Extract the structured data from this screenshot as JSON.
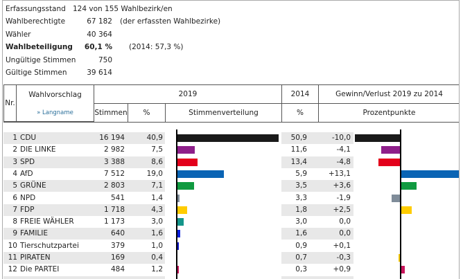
{
  "summary": [
    {
      "label": "Erfassungsstand",
      "value": "124 von 155 Wahlbezirk/en",
      "extra": ""
    },
    {
      "label": "Wahlberechtigte",
      "value": "67 182",
      "extra": "(der erfassten Wahlbezirke)"
    },
    {
      "label": "Wähler",
      "value": "40 364",
      "extra": ""
    },
    {
      "label": "Wahlbeteiligung",
      "value": "60,1  %",
      "extra": "(2014: 57,3  %)"
    },
    {
      "label": "Ungültige Stimmen",
      "value": "750",
      "extra": ""
    },
    {
      "label": "Gültige Stimmen",
      "value": "39 614",
      "extra": ""
    }
  ],
  "header": {
    "nr": "Nr.",
    "wahlvorschlag": "Wahlvorschlag",
    "langname": "» Langname",
    "y2019": "2019",
    "y2014": "2014",
    "gewinn": "Gewinn/Verlust 2019 zu 2014",
    "stimmen": "Stimmen",
    "pct": "%",
    "verteilung": "Stimmenverteilung",
    "pct2014": "%",
    "punkte": "Prozentpunkte"
  },
  "rows": [
    {
      "nr": "1",
      "name": "CDU",
      "stimmen": "16 194",
      "pct": "40,9",
      "pct2014": "50,9",
      "diff": "-10,0",
      "v": 40.9,
      "d": -10.0,
      "color": "#1a1a1a"
    },
    {
      "nr": "2",
      "name": "DIE LINKE",
      "stimmen": "2 982",
      "pct": "7,5",
      "pct2014": "11,6",
      "diff": "-4,1",
      "v": 7.5,
      "d": -4.1,
      "color": "#8e1f8a"
    },
    {
      "nr": "3",
      "name": "SPD",
      "stimmen": "3 388",
      "pct": "8,6",
      "pct2014": "13,4",
      "diff": "-4,8",
      "v": 8.6,
      "d": -4.8,
      "color": "#e3001b"
    },
    {
      "nr": "4",
      "name": "AfD",
      "stimmen": "7 512",
      "pct": "19,0",
      "pct2014": "5,9",
      "diff": "+13,1",
      "v": 19.0,
      "d": 13.1,
      "color": "#0a64b4"
    },
    {
      "nr": "5",
      "name": "GRÜNE",
      "stimmen": "2 803",
      "pct": "7,1",
      "pct2014": "3,5",
      "diff": "+3,6",
      "v": 7.1,
      "d": 3.6,
      "color": "#109a40"
    },
    {
      "nr": "6",
      "name": "NPD",
      "stimmen": "541",
      "pct": "1,4",
      "pct2014": "3,3",
      "diff": "-1,9",
      "v": 1.4,
      "d": -1.9,
      "color": "#7f8c99"
    },
    {
      "nr": "7",
      "name": "FDP",
      "stimmen": "1 718",
      "pct": "4,3",
      "pct2014": "1,8",
      "diff": "+2,5",
      "v": 4.3,
      "d": 2.5,
      "color": "#ffcc00"
    },
    {
      "nr": "8",
      "name": "FREIE WÄHLER",
      "stimmen": "1 173",
      "pct": "3,0",
      "pct2014": "3,0",
      "diff": "0,0",
      "v": 3.0,
      "d": 0.0,
      "color": "#14958a"
    },
    {
      "nr": "9",
      "name": "FAMILIE",
      "stimmen": "640",
      "pct": "1,6",
      "pct2014": "1,6",
      "diff": "0,0",
      "v": 1.6,
      "d": 0.0,
      "color": "#0a1edc"
    },
    {
      "nr": "10",
      "name": "Tierschutzpartei",
      "stimmen": "379",
      "pct": "1,0",
      "pct2014": "0,9",
      "diff": "+0,1",
      "v": 1.0,
      "d": 0.1,
      "color": "#0a14c8"
    },
    {
      "nr": "11",
      "name": "PIRATEN",
      "stimmen": "169",
      "pct": "0,4",
      "pct2014": "0,7",
      "diff": "-0,3",
      "v": 0.4,
      "d": -0.3,
      "color": "#f5c800"
    },
    {
      "nr": "12",
      "name": "Die PARTEI",
      "stimmen": "484",
      "pct": "1,2",
      "pct2014": "0,3",
      "diff": "+0,9",
      "v": 1.2,
      "d": 0.9,
      "color": "#c8145a"
    }
  ]
}
